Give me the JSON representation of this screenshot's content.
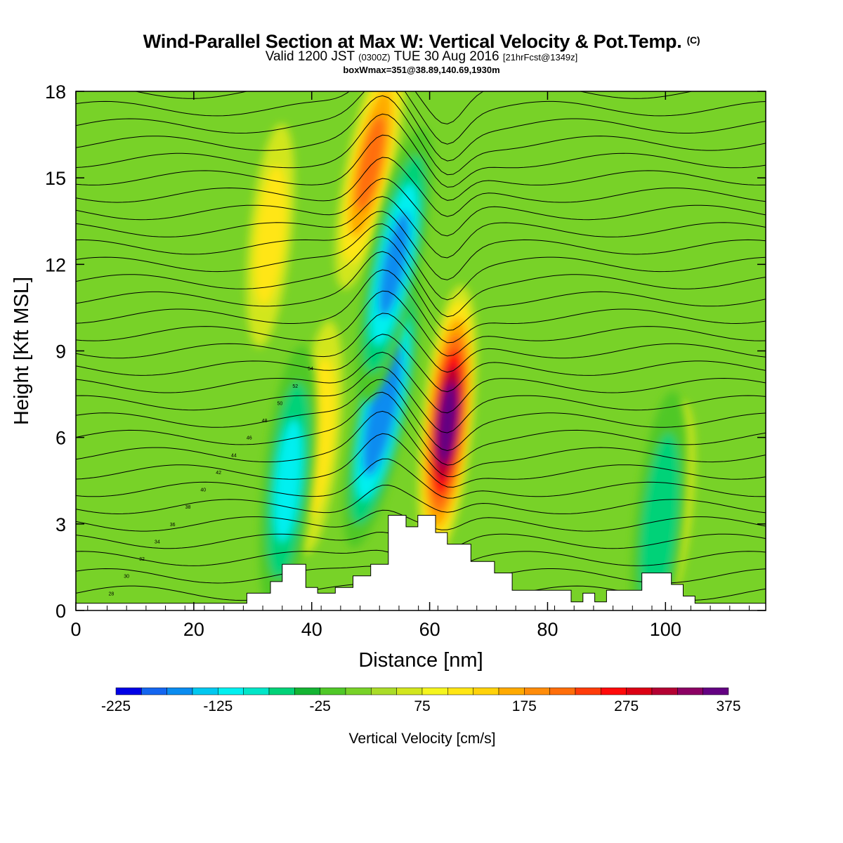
{
  "header": {
    "title": "Wind-Parallel Section at Max W: Vertical Velocity & Pot.Temp.",
    "copyright": "(C)",
    "valid_main": "Valid 1200 JST",
    "valid_zulu": "(0300Z)",
    "valid_date": "TUE 30 Aug 2016",
    "forecast": "[21hrFcst@1349z]",
    "box_info": "boxWmax=351@38.89,140.69,1930m"
  },
  "chart_data": {
    "type": "heatmap",
    "xlabel": "Distance [nm]",
    "ylabel": "Height [Kft MSL]",
    "xlim": [
      0,
      117
    ],
    "ylim": [
      0,
      18
    ],
    "x_ticks": [
      "0",
      "20",
      "40",
      "60",
      "80",
      "100"
    ],
    "y_ticks": [
      "0",
      "3",
      "6",
      "9",
      "12",
      "15",
      "18"
    ],
    "colorbar": {
      "label": "Vertical Velocity [cm/s]",
      "tick_labels": [
        "-225",
        "-125",
        "-25",
        "75",
        "175",
        "275",
        "375"
      ],
      "colors": [
        "#0000e6",
        "#1466f0",
        "#0a8cf0",
        "#00c8f0",
        "#00f0f0",
        "#00e6c8",
        "#00d278",
        "#14b432",
        "#50c828",
        "#78d228",
        "#aadc28",
        "#d2e61e",
        "#f5f51e",
        "#ffe614",
        "#ffd20a",
        "#ffaa00",
        "#ff8c0a",
        "#ff6e0a",
        "#ff3c0a",
        "#ff0a0a",
        "#dc0014",
        "#b40032",
        "#8c0064",
        "#640082"
      ]
    },
    "theta_contour_labels": [
      "28",
      "30",
      "32",
      "34",
      "36",
      "38",
      "40",
      "42",
      "44",
      "46",
      "48",
      "50",
      "52",
      "54"
    ],
    "terrain": [
      [
        0,
        0.25
      ],
      [
        29,
        0.25
      ],
      [
        29,
        0.6
      ],
      [
        33,
        0.6
      ],
      [
        33,
        1.0
      ],
      [
        35,
        1.0
      ],
      [
        35,
        1.6
      ],
      [
        39,
        1.6
      ],
      [
        39,
        0.8
      ],
      [
        41,
        0.8
      ],
      [
        41,
        0.6
      ],
      [
        44,
        0.6
      ],
      [
        44,
        0.8
      ],
      [
        47,
        0.8
      ],
      [
        47,
        1.2
      ],
      [
        50,
        1.2
      ],
      [
        50,
        1.6
      ],
      [
        53,
        1.6
      ],
      [
        53,
        3.3
      ],
      [
        56,
        3.3
      ],
      [
        56,
        2.9
      ],
      [
        58,
        2.9
      ],
      [
        58,
        3.3
      ],
      [
        61,
        3.3
      ],
      [
        61,
        2.7
      ],
      [
        63,
        2.7
      ],
      [
        63,
        2.3
      ],
      [
        67,
        2.3
      ],
      [
        67,
        1.7
      ],
      [
        71,
        1.7
      ],
      [
        71,
        1.3
      ],
      [
        74,
        1.3
      ],
      [
        74,
        0.7
      ],
      [
        84,
        0.7
      ],
      [
        84,
        0.3
      ],
      [
        86,
        0.3
      ],
      [
        86,
        0.6
      ],
      [
        88,
        0.6
      ],
      [
        88,
        0.3
      ],
      [
        90,
        0.3
      ],
      [
        90,
        0.7
      ],
      [
        96,
        0.7
      ],
      [
        96,
        1.3
      ],
      [
        101,
        1.3
      ],
      [
        101,
        0.9
      ],
      [
        103,
        0.9
      ],
      [
        103,
        0.5
      ],
      [
        105,
        0.5
      ],
      [
        105,
        0.25
      ],
      [
        117,
        0.25
      ]
    ],
    "velocity_features": [
      {
        "x": 63,
        "y": 6.5,
        "value": 351
      },
      {
        "x": 52,
        "y": 7.0,
        "value": -220
      },
      {
        "x": 50,
        "y": 15.5,
        "value": 200
      },
      {
        "x": 54,
        "y": 12.0,
        "value": -180
      },
      {
        "x": 41,
        "y": 6.0,
        "value": 130
      },
      {
        "x": 36,
        "y": 4.5,
        "value": -130
      },
      {
        "x": 33,
        "y": 13.0,
        "value": 110
      },
      {
        "x": 101,
        "y": 3.5,
        "value": 100
      },
      {
        "x": 99,
        "y": 3.0,
        "value": -110
      }
    ]
  }
}
